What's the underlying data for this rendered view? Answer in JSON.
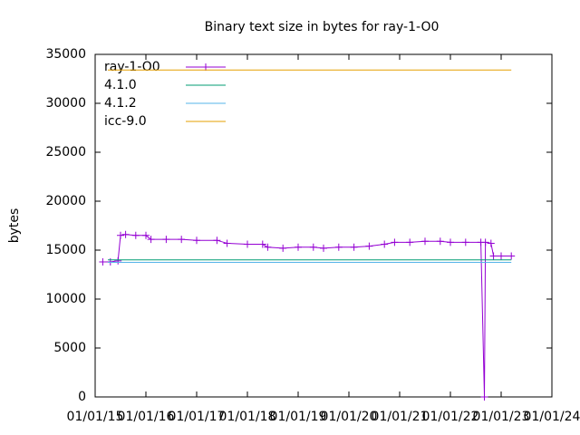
{
  "chart_data": {
    "type": "line",
    "title": "Binary text size in bytes for ray-1-O0",
    "y_label": "bytes",
    "xlim": [
      2015,
      2024
    ],
    "xticks": [
      {
        "value": 2015,
        "label": "01/01/15"
      },
      {
        "value": 2016,
        "label": "01/01/16"
      },
      {
        "value": 2017,
        "label": "01/01/17"
      },
      {
        "value": 2018,
        "label": "01/01/18"
      },
      {
        "value": 2019,
        "label": "01/01/19"
      },
      {
        "value": 2020,
        "label": "01/01/20"
      },
      {
        "value": 2021,
        "label": "01/01/21"
      },
      {
        "value": 2022,
        "label": "01/01/22"
      },
      {
        "value": 2023,
        "label": "01/01/23"
      },
      {
        "value": 2024,
        "label": "01/01/24"
      }
    ],
    "ylim": [
      0,
      35000
    ],
    "yticks": [
      0,
      5000,
      10000,
      15000,
      20000,
      25000,
      30000,
      35000
    ],
    "legend": "top-left",
    "series": [
      {
        "name": "ray-1-O0",
        "color": "#9400d3",
        "markers": true,
        "x": [
          2015.15,
          2015.3,
          2015.45,
          2015.5,
          2015.6,
          2015.8,
          2016.0,
          2016.1,
          2016.4,
          2016.7,
          2017.0,
          2017.4,
          2017.6,
          2018.0,
          2018.3,
          2018.4,
          2018.7,
          2019.0,
          2019.3,
          2019.5,
          2019.8,
          2020.1,
          2020.4,
          2020.7,
          2020.9,
          2021.2,
          2021.5,
          2021.8,
          2022.0,
          2022.3,
          2022.6,
          2022.67,
          2022.69,
          2022.8,
          2022.85,
          2023.0,
          2023.2
        ],
        "values": [
          13800,
          13800,
          13900,
          16500,
          16600,
          16500,
          16500,
          16100,
          16100,
          16100,
          16000,
          16000,
          15700,
          15600,
          15600,
          15300,
          15200,
          15300,
          15300,
          15200,
          15300,
          15300,
          15400,
          15600,
          15800,
          15800,
          15900,
          15900,
          15800,
          15800,
          15800,
          0,
          15800,
          15700,
          14400,
          14400,
          14400
        ]
      },
      {
        "name": "4.1.0",
        "color": "#009e73",
        "markers": false,
        "x": [
          2015.25,
          2023.2
        ],
        "values": [
          14000,
          14000
        ]
      },
      {
        "name": "4.1.2",
        "color": "#56b4e9",
        "markers": false,
        "x": [
          2015.25,
          2023.2
        ],
        "values": [
          13750,
          13750
        ]
      },
      {
        "name": "icc-9.0",
        "color": "#e69f00",
        "markers": false,
        "x": [
          2015.25,
          2023.2
        ],
        "values": [
          33400,
          33400
        ]
      }
    ]
  }
}
